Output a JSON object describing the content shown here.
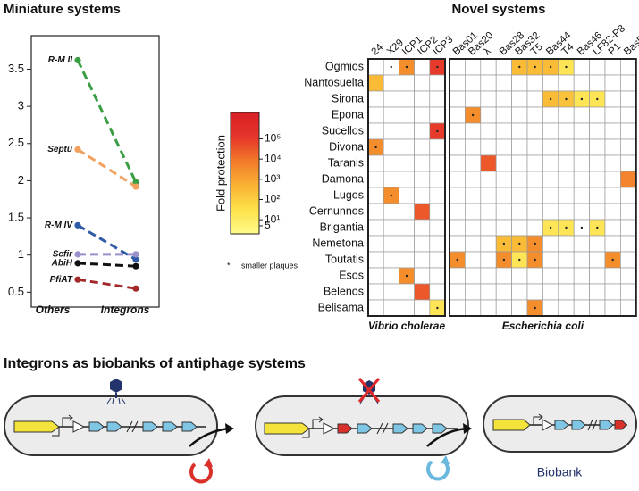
{
  "chart_data": [
    {
      "type": "line",
      "title": "Miniature systems",
      "categories": [
        "Others",
        "Integrons"
      ],
      "ylim": [
        0.3,
        3.95
      ],
      "yticks": [
        0.5,
        1,
        1.5,
        2,
        2.5,
        3,
        3.5
      ],
      "series": [
        {
          "name": "R-M II",
          "color": "#3a9e45",
          "values": [
            3.62,
            1.98
          ]
        },
        {
          "name": "Septu",
          "color": "#f2a05e",
          "values": [
            2.42,
            1.92
          ]
        },
        {
          "name": "R-M IV",
          "color": "#2f5aa6",
          "values": [
            1.4,
            0.94
          ]
        },
        {
          "name": "Sefir",
          "color": "#9b90c9",
          "values": [
            1.01,
            1.01
          ]
        },
        {
          "name": "AbiH",
          "color": "#111111",
          "values": [
            0.89,
            0.85
          ]
        },
        {
          "name": "PfiAT",
          "color": "#a3282a",
          "values": [
            0.67,
            0.55
          ]
        }
      ]
    },
    {
      "type": "heatmap",
      "title": "Novel systems",
      "groups": [
        {
          "name": "Vibrio cholerae",
          "columns": [
            "24",
            "X29",
            "ICP1",
            "ICP2",
            "ICP3"
          ]
        },
        {
          "name": "Escherichia coli",
          "columns": [
            "Bas01",
            "Bas20",
            "λ",
            "Bas28",
            "Bas32",
            "T5",
            "Bas44",
            "T4",
            "Bas46",
            "LF82-P8",
            "P1",
            "Bas5"
          ]
        }
      ],
      "rows": [
        {
          "name": "Ogmios",
          "values": [
            [
              null,
              null,
              3000,
              null,
              100000
            ],
            [
              null,
              null,
              null,
              null,
              300,
              300,
              300,
              20,
              null,
              null,
              null,
              null
            ]
          ],
          "smaller_plaques": [
            "X29",
            "ICP1",
            "ICP3",
            "Bas32",
            "T5",
            "Bas44",
            "T4"
          ]
        },
        {
          "name": "Nantosuelta",
          "values": [
            [
              300,
              null,
              null,
              null,
              null
            ],
            [
              null,
              null,
              null,
              null,
              null,
              null,
              null,
              null,
              null,
              null,
              null,
              null
            ]
          ],
          "smaller_plaques": []
        },
        {
          "name": "Sirona",
          "values": [
            [
              null,
              null,
              null,
              null,
              null
            ],
            [
              null,
              null,
              null,
              null,
              null,
              null,
              300,
              200,
              20,
              20,
              null,
              null
            ]
          ],
          "smaller_plaques": [
            "Bas44",
            "T4",
            "Bas46",
            "LF82-P8"
          ]
        },
        {
          "name": "Epona",
          "values": [
            [
              null,
              null,
              null,
              null,
              null
            ],
            [
              null,
              3000,
              null,
              null,
              null,
              null,
              null,
              null,
              null,
              null,
              null,
              null
            ]
          ],
          "smaller_plaques": [
            "Bas20"
          ]
        },
        {
          "name": "Sucellos",
          "values": [
            [
              null,
              null,
              null,
              null,
              100000
            ],
            [
              null,
              null,
              null,
              null,
              null,
              null,
              null,
              null,
              null,
              null,
              null,
              null
            ]
          ],
          "smaller_plaques": [
            "ICP3"
          ]
        },
        {
          "name": "Divona",
          "values": [
            [
              3000,
              null,
              null,
              null,
              null
            ],
            [
              null,
              null,
              null,
              null,
              null,
              null,
              null,
              null,
              null,
              null,
              null,
              null
            ]
          ],
          "smaller_plaques": [
            "24"
          ]
        },
        {
          "name": "Taranis",
          "values": [
            [
              null,
              null,
              null,
              null,
              null
            ],
            [
              null,
              null,
              30000,
              null,
              null,
              null,
              null,
              null,
              null,
              null,
              null,
              null
            ]
          ],
          "smaller_plaques": []
        },
        {
          "name": "Damona",
          "values": [
            [
              null,
              null,
              null,
              null,
              null
            ],
            [
              null,
              null,
              null,
              null,
              null,
              null,
              null,
              null,
              null,
              null,
              null,
              5000
            ]
          ],
          "smaller_plaques": []
        },
        {
          "name": "Lugos",
          "values": [
            [
              null,
              3000,
              null,
              null,
              null
            ],
            [
              null,
              null,
              null,
              null,
              null,
              null,
              null,
              null,
              null,
              null,
              null,
              null
            ]
          ],
          "smaller_plaques": [
            "X29"
          ]
        },
        {
          "name": "Cernunnos",
          "values": [
            [
              null,
              null,
              null,
              30000,
              null
            ],
            [
              null,
              null,
              null,
              null,
              null,
              null,
              null,
              null,
              null,
              null,
              null,
              null
            ]
          ],
          "smaller_plaques": []
        },
        {
          "name": "Brigantia",
          "values": [
            [
              null,
              null,
              null,
              null,
              null
            ],
            [
              null,
              null,
              null,
              null,
              null,
              null,
              20,
              20,
              null,
              20,
              null,
              null
            ]
          ],
          "smaller_plaques": [
            "Bas44",
            "T4",
            "Bas46",
            "LF82-P8"
          ]
        },
        {
          "name": "Nemetona",
          "values": [
            [
              null,
              null,
              null,
              null,
              null
            ],
            [
              null,
              null,
              null,
              300,
              300,
              3000,
              null,
              null,
              null,
              null,
              null,
              null
            ]
          ],
          "smaller_plaques": [
            "Bas28",
            "Bas32",
            "T5"
          ]
        },
        {
          "name": "Toutatis",
          "values": [
            [
              null,
              null,
              null,
              null,
              null
            ],
            [
              3000,
              null,
              null,
              3000,
              20,
              3000,
              null,
              null,
              null,
              null,
              3000,
              null
            ]
          ],
          "smaller_plaques": [
            "Bas01",
            "Bas28",
            "Bas32",
            "T5",
            "P1"
          ]
        },
        {
          "name": "Esos",
          "values": [
            [
              null,
              null,
              3000,
              null,
              null
            ],
            [
              null,
              null,
              null,
              null,
              null,
              null,
              null,
              null,
              null,
              null,
              null,
              null
            ]
          ],
          "smaller_plaques": [
            "ICP1"
          ]
        },
        {
          "name": "Belenos",
          "values": [
            [
              null,
              null,
              null,
              30000,
              null
            ],
            [
              null,
              null,
              null,
              null,
              null,
              null,
              null,
              null,
              null,
              null,
              null,
              null
            ]
          ],
          "smaller_plaques": []
        },
        {
          "name": "Belisama",
          "values": [
            [
              null,
              null,
              null,
              null,
              20
            ],
            [
              null,
              null,
              null,
              null,
              null,
              3000,
              null,
              null,
              null,
              null,
              null,
              null
            ]
          ],
          "smaller_plaques": [
            "ICP3",
            "T5"
          ]
        }
      ],
      "colorbar": {
        "label": "Fold protection",
        "log": true,
        "lim": [
          2,
          2000000
        ],
        "ticks": [
          {
            "value": 100000,
            "label": "10⁵"
          },
          {
            "value": 10000,
            "label": "10⁴"
          },
          {
            "value": 1000,
            "label": "10³"
          },
          {
            "value": 100,
            "label": "10²"
          },
          {
            "value": 10,
            "label": "10¹"
          },
          5
        ],
        "colors": [
          "#fffb8a",
          "#fde14a",
          "#f9b233",
          "#f27a2a",
          "#e5342a",
          "#d92027"
        ]
      },
      "note": "*     smaller plaques"
    }
  ],
  "diagram": {
    "title": "Integrons as biobanks of antiphage systems",
    "label": "Biobank"
  }
}
